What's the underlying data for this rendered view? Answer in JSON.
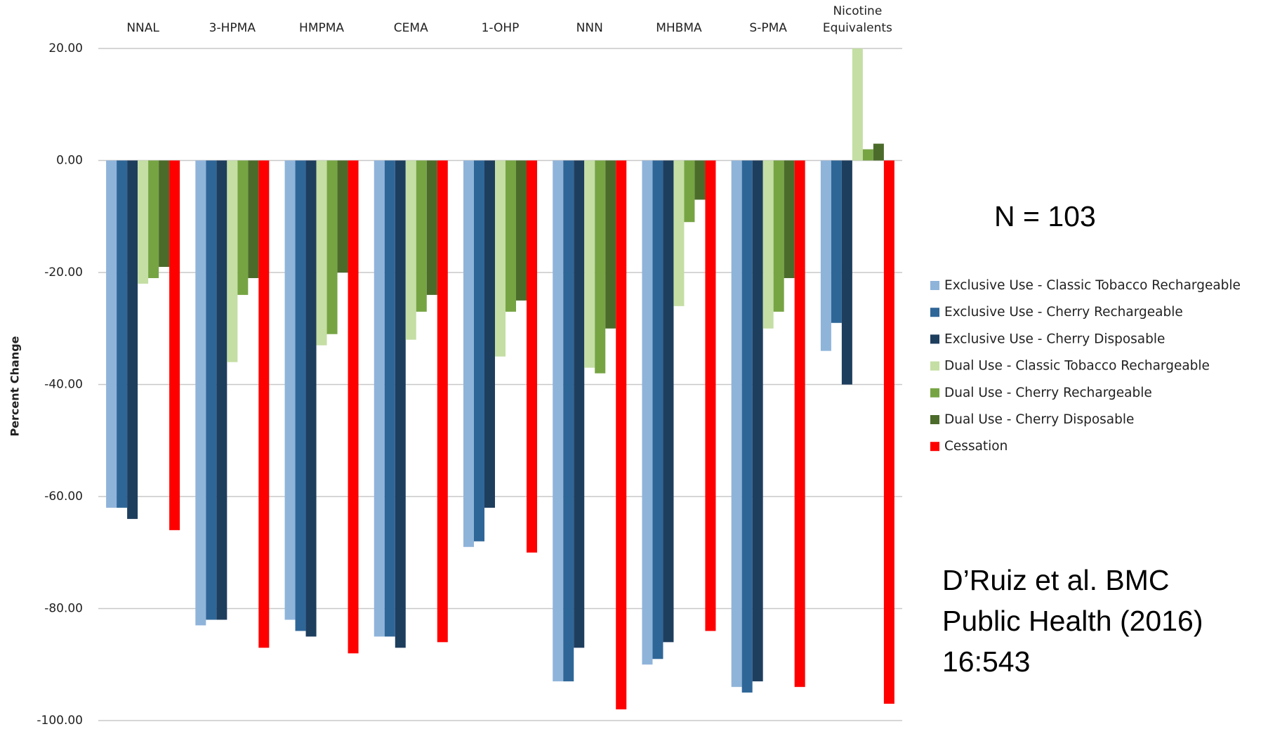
{
  "chart_data": {
    "type": "bar",
    "y_label": "Percent Change",
    "categories": [
      "NNAL",
      "3-HPMA",
      "HMPMA",
      "CEMA",
      "1-OHP",
      "NNN",
      "MHBMA",
      "S-PMA",
      "Nicotine Equivalents"
    ],
    "series": [
      {
        "name": "Exclusive Use - Classic Tobacco Rechargeable",
        "color": "#8fb4da",
        "values": [
          -62,
          -83,
          -82,
          -85,
          -69,
          -93,
          -90,
          -94,
          -34
        ]
      },
      {
        "name": "Exclusive Use - Cherry Rechargeable",
        "color": "#2f6698",
        "values": [
          -62,
          -82,
          -84,
          -85,
          -68,
          -93,
          -89,
          -95,
          -29
        ]
      },
      {
        "name": "Exclusive Use - Cherry Disposable",
        "color": "#1e3e5e",
        "values": [
          -64,
          -82,
          -85,
          -87,
          -62,
          -87,
          -86,
          -93,
          -40
        ]
      },
      {
        "name": "Dual Use - Classic Tobacco Rechargeable",
        "color": "#c4dea4",
        "values": [
          -22,
          -36,
          -33,
          -32,
          -35,
          -37,
          -26,
          -30,
          20
        ]
      },
      {
        "name": "Dual Use - Cherry Rechargeable",
        "color": "#76a443",
        "values": [
          -21,
          -24,
          -31,
          -27,
          -27,
          -38,
          -11,
          -27,
          2
        ]
      },
      {
        "name": "Dual Use - Cherry Disposable",
        "color": "#4b6b2b",
        "values": [
          -19,
          -21,
          -20,
          -24,
          -25,
          -30,
          -7,
          -21,
          3
        ]
      },
      {
        "name": "Cessation",
        "color": "#ff0000",
        "values": [
          -66,
          -87,
          -88,
          -86,
          -70,
          -98,
          -84,
          -94,
          -97
        ]
      }
    ],
    "ylim": [
      -100,
      20
    ],
    "yticks": [
      {
        "value": -100,
        "label": "-100.00"
      },
      {
        "value": -80,
        "label": "-80.00"
      },
      {
        "value": -60,
        "label": "-60.00"
      },
      {
        "value": -40,
        "label": "-40.00"
      },
      {
        "value": -20,
        "label": "-20.00"
      },
      {
        "value": 0,
        "label": "0.00"
      },
      {
        "value": 20,
        "label": "20.00"
      }
    ],
    "grid": true,
    "annotation": "N = 103",
    "citation": [
      "D’Ruiz et al. BMC",
      "Public Health (2016)",
      "16:543"
    ]
  }
}
